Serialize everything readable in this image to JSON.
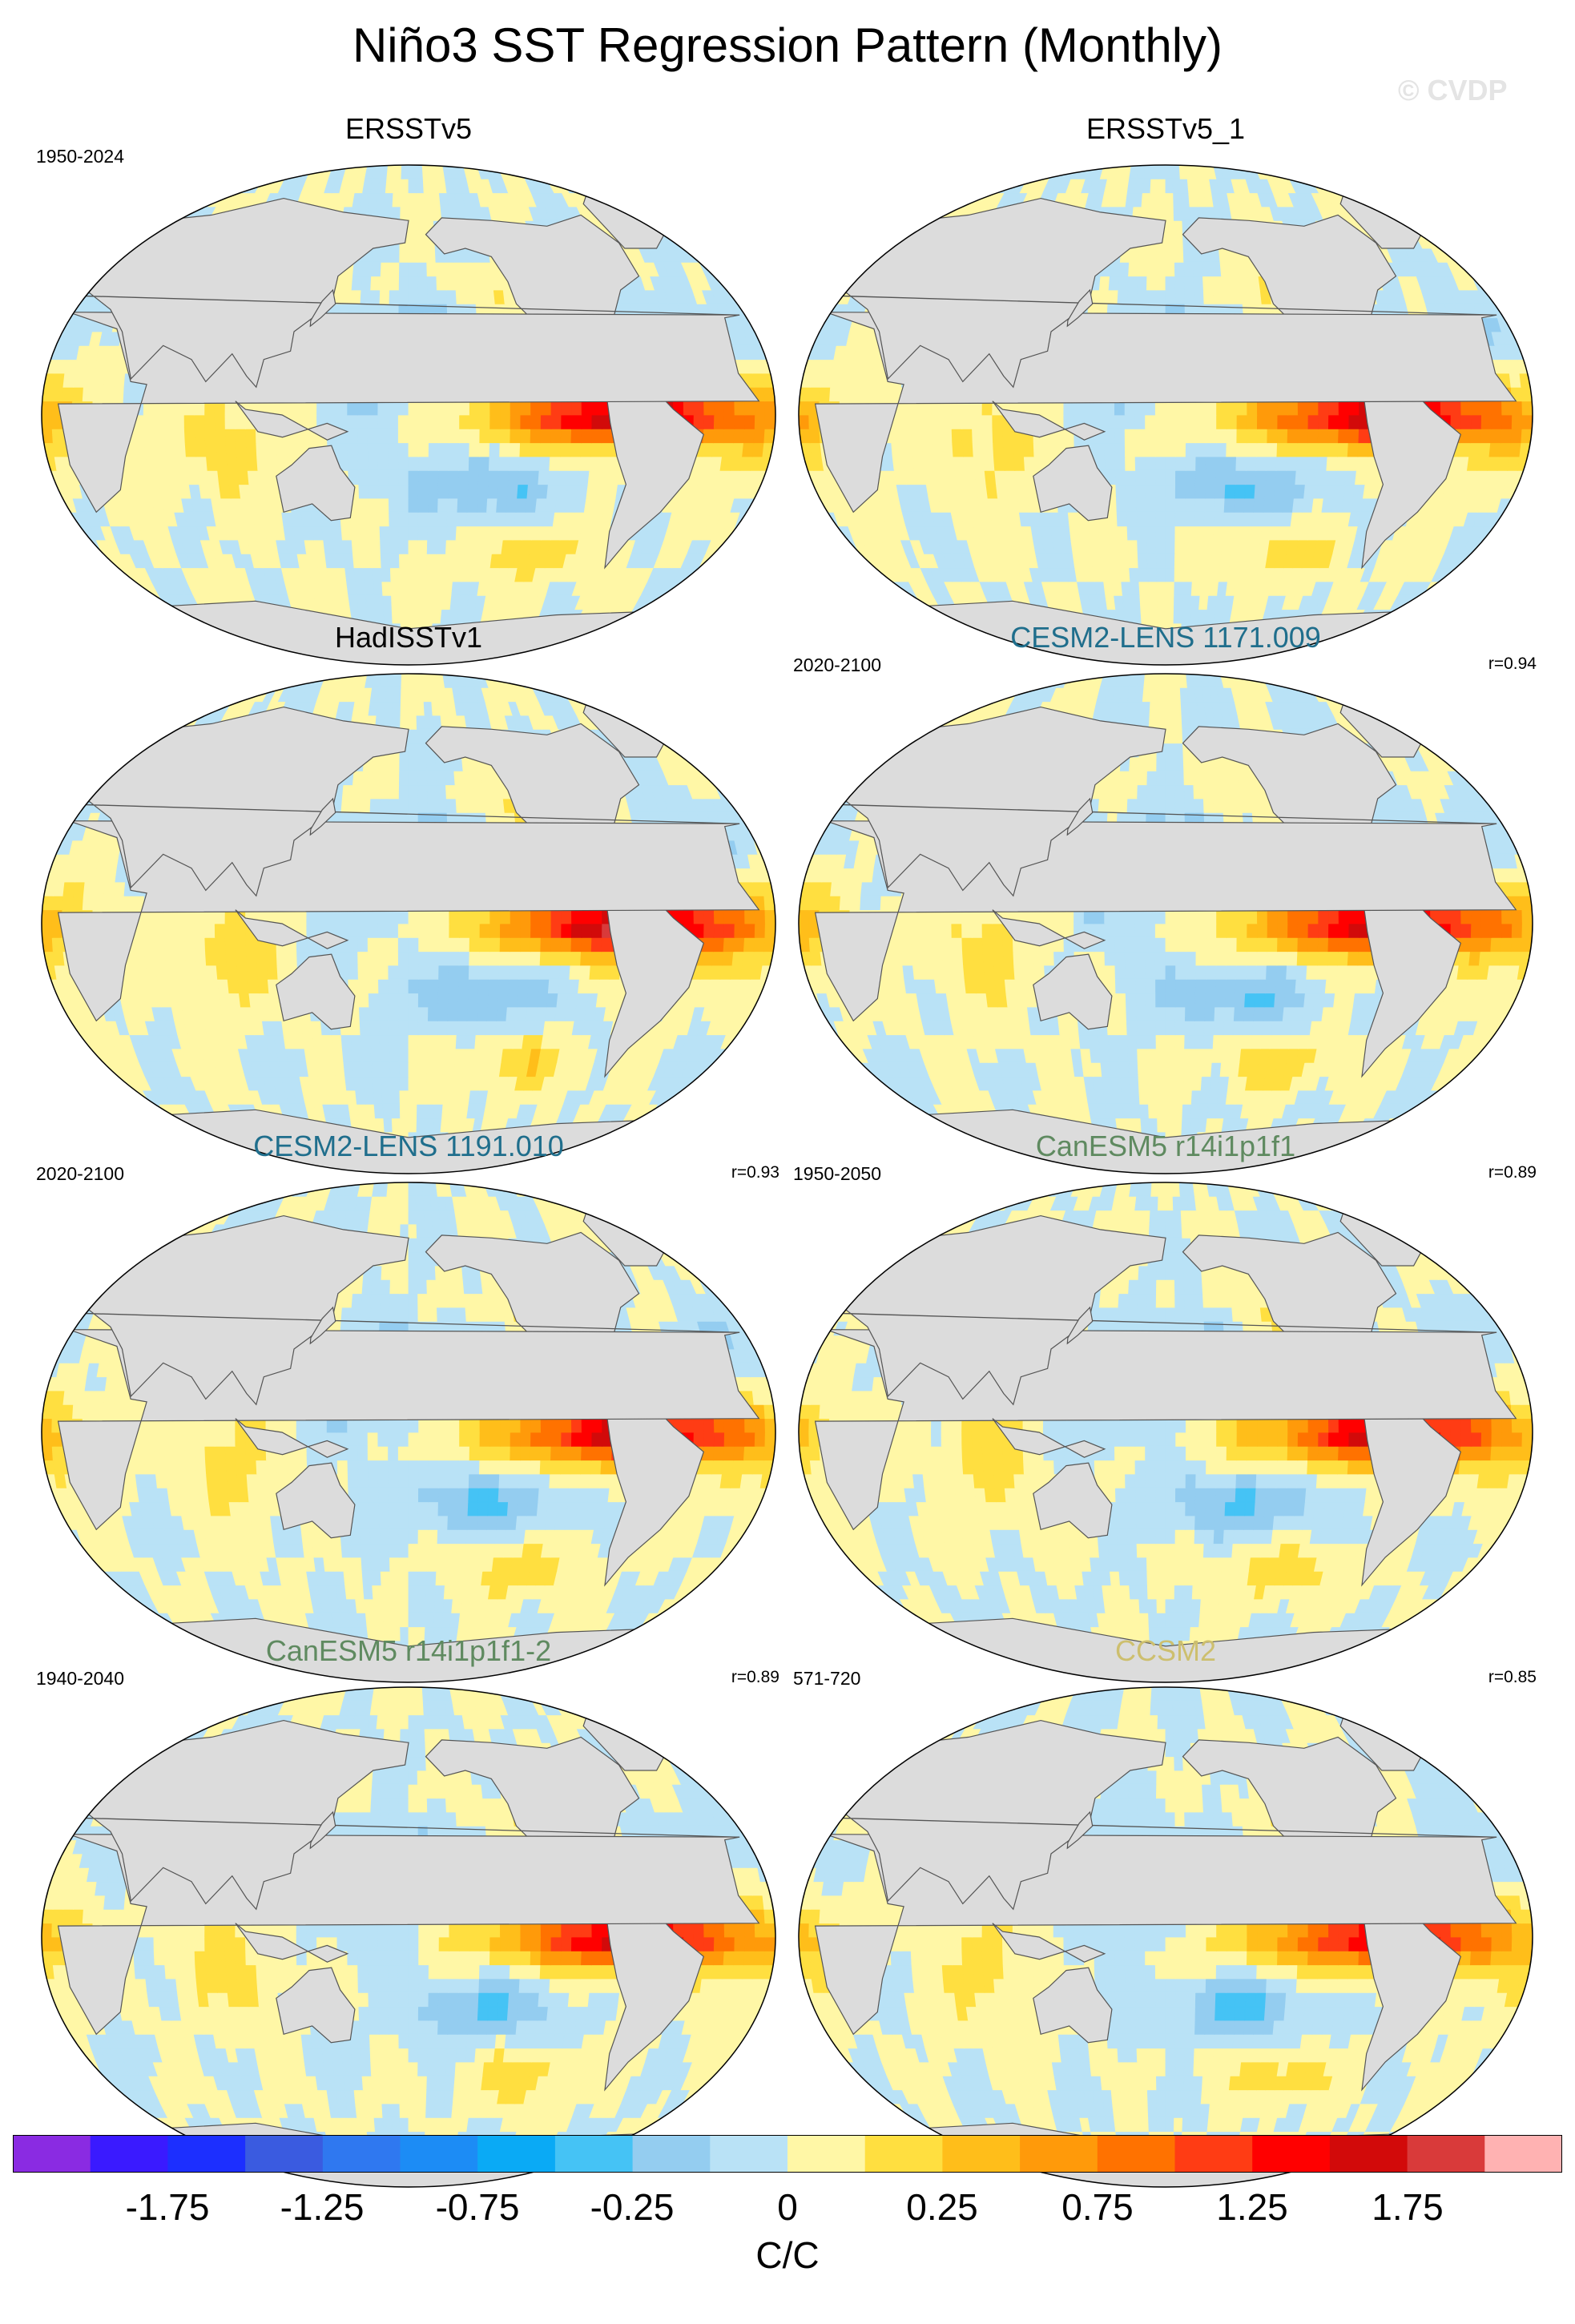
{
  "title": "Niño3 SST Regression Pattern (Monthly)",
  "watermark": "© CVDP",
  "panels": [
    {
      "title": "ERSSTv5",
      "period": "1950-2024",
      "r": "",
      "title_color": "black",
      "amp": 1.0,
      "var": 0
    },
    {
      "title": "ERSSTv5_1",
      "period": "",
      "r": "",
      "title_color": "black",
      "amp": 1.0,
      "var": 1
    },
    {
      "title": "HadISSTv1",
      "period": "",
      "r": "",
      "title_color": "black",
      "amp": 1.05,
      "var": 2
    },
    {
      "title": "CESM2-LENS 1171.009",
      "period": "2020-2100",
      "r": "r=0.94",
      "title_color": "teal",
      "amp": 0.95,
      "var": 3
    },
    {
      "title": "CESM2-LENS 1191.010",
      "period": "2020-2100",
      "r": "r=0.93",
      "title_color": "teal",
      "amp": 0.95,
      "var": 4
    },
    {
      "title": "CanESM5 r14i1p1f1",
      "period": "1950-2050",
      "r": "r=0.89",
      "title_color": "green",
      "amp": 0.9,
      "var": 5
    },
    {
      "title": "CanESM5 r14i1p1f1-2",
      "period": "1940-2040",
      "r": "r=0.89",
      "title_color": "green",
      "amp": 0.9,
      "var": 6
    },
    {
      "title": "CCSM2",
      "period": "571-720",
      "r": "r=0.85",
      "title_color": "khaki",
      "amp": 0.85,
      "var": 7
    }
  ],
  "colorbar": {
    "colors": [
      "#8a2be2",
      "#3a1aff",
      "#1c2fff",
      "#3a5be0",
      "#2f78f0",
      "#1c8cf5",
      "#0aaaf5",
      "#45c3f5",
      "#94cdf0",
      "#b9e2f6",
      "#fff7a6",
      "#ffdf40",
      "#ffbe1a",
      "#ff9a0a",
      "#ff7200",
      "#ff3c14",
      "#ff0000",
      "#d20a0a",
      "#d93a3a",
      "#ffb2b2"
    ],
    "ticks": [
      "-1.75",
      "-1.25",
      "-0.75",
      "-0.25",
      "0",
      "0.25",
      "0.75",
      "1.25",
      "1.75"
    ],
    "units": "C/C"
  }
}
